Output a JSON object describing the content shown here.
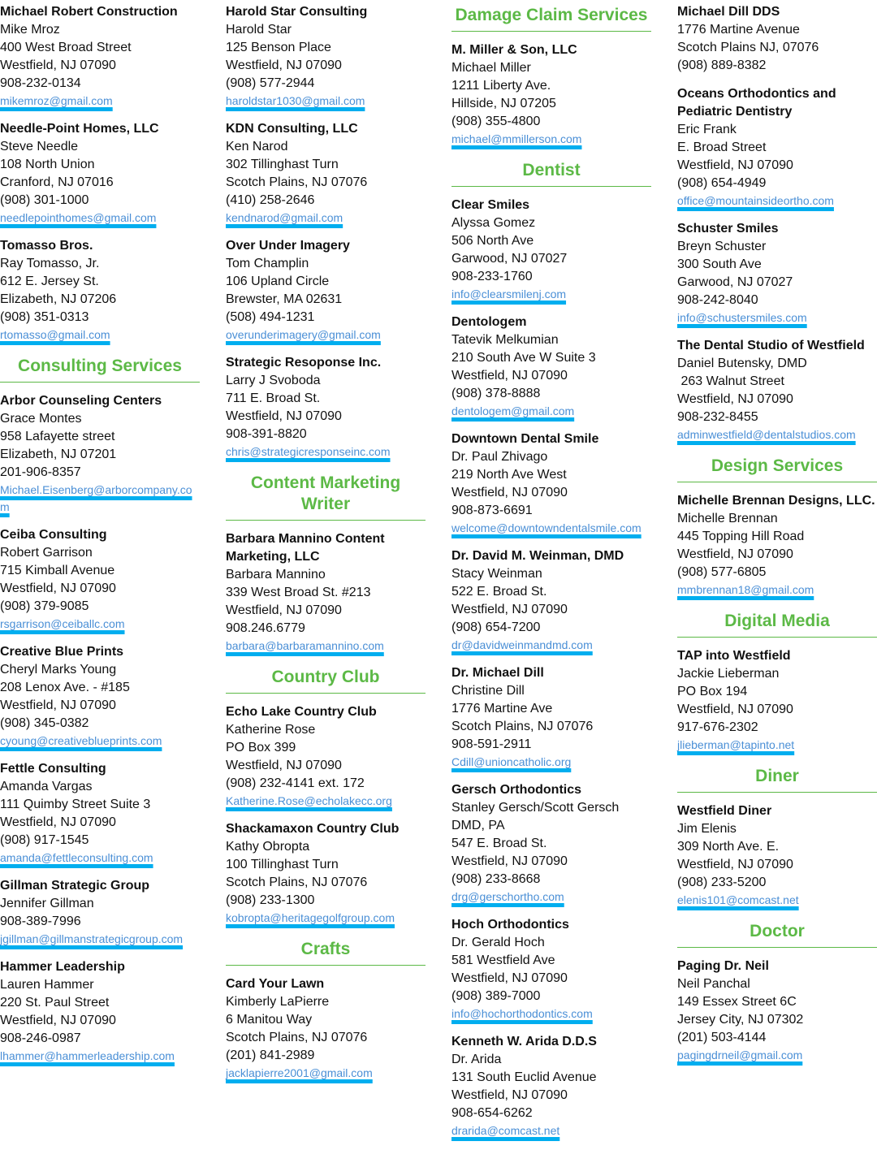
{
  "columns": [
    {
      "items": [
        {
          "name": "Michael Robert Construction",
          "lines": [
            "Mike Mroz",
            "400 West Broad Street",
            "Westfield, NJ 07090",
            "908-232-0134"
          ],
          "email": "mikemroz@gmail.com"
        },
        {
          "name": "Needle-Point Homes, LLC",
          "lines": [
            "Steve Needle",
            "108 North Union",
            "Cranford, NJ 07016",
            "(908) 301-1000"
          ],
          "email": "needlepointhomes@gmail.com"
        },
        {
          "name": "Tomasso Bros.",
          "lines": [
            "Ray Tomasso, Jr.",
            "612 E. Jersey St.",
            "Elizabeth, NJ 07206",
            "(908) 351-0313"
          ],
          "email": "rtomasso@gmail.com"
        },
        {
          "heading": "Consulting Services"
        },
        {
          "name": "Arbor Counseling Centers",
          "lines": [
            "Grace Montes",
            "958 Lafayette street",
            "Elizabeth, NJ 07201",
            "201-906-8357"
          ],
          "email": "Michael.Eisenberg@arborcompany.com"
        },
        {
          "name": "Ceiba Consulting",
          "lines": [
            "Robert Garrison",
            "715 Kimball Avenue",
            "Westfield, NJ 07090",
            "(908) 379-9085"
          ],
          "email": "rsgarrison@ceiballc.com"
        },
        {
          "name": "Creative Blue Prints",
          "lines": [
            "Cheryl Marks Young",
            "208 Lenox Ave. - #185",
            "Westfield, NJ 07090",
            "(908) 345-0382"
          ],
          "email": "cyoung@creativeblueprints.com"
        },
        {
          "name": "Fettle Consulting",
          "lines": [
            "Amanda Vargas",
            "111 Quimby Street Suite 3",
            "Westfield, NJ 07090",
            "(908) 917-1545"
          ],
          "email": "amanda@fettleconsulting.com"
        },
        {
          "name": "Gillman Strategic Group",
          "lines": [
            "Jennifer Gillman",
            "908-389-7996"
          ],
          "email": "jgillman@gillmanstrategicgroup.com"
        },
        {
          "name": "Hammer Leadership",
          "lines": [
            "Lauren Hammer",
            "220 St. Paul Street",
            "Westfield, NJ 07090",
            "908-246-0987"
          ],
          "email": "lhammer@hammerleadership.com"
        }
      ]
    },
    {
      "items": [
        {
          "name": "Harold Star Consulting",
          "lines": [
            "Harold Star",
            "125 Benson Place",
            "Westfield, NJ 07090",
            "(908) 577-2944"
          ],
          "email": "haroldstar1030@gmail.com"
        },
        {
          "name": "KDN Consulting, LLC",
          "lines": [
            "Ken Narod",
            "302 Tillinghast Turn",
            "Scotch Plains, NJ 07076",
            "(410) 258-2646"
          ],
          "email": "kendnarod@gmail.com"
        },
        {
          "name": "Over Under Imagery",
          "lines": [
            "Tom Champlin",
            "106 Upland Circle",
            "Brewster, MA 02631",
            "(508) 494-1231"
          ],
          "email": "overunderimagery@gmail.com"
        },
        {
          "name": "Strategic Resoponse Inc.",
          "lines": [
            "Larry J Svoboda",
            "711 E. Broad St.",
            "Westfield, NJ 07090",
            "908-391-8820"
          ],
          "email": "chris@strategicresponseinc.com"
        },
        {
          "heading": "Content Marketing Writer"
        },
        {
          "name": "Barbara Mannino Content Marketing, LLC",
          "lines": [
            "Barbara Mannino",
            "339 West Broad St. #213",
            "Westfield, NJ 07090",
            "908.246.6779"
          ],
          "email": "barbara@barbaramannino.com"
        },
        {
          "heading": "Country Club"
        },
        {
          "name": "Echo Lake Country Club",
          "lines": [
            "Katherine Rose",
            "PO Box 399",
            "Westfield, NJ 07090",
            "(908) 232-4141 ext. 172"
          ],
          "email": "Katherine.Rose@echolakecc.org"
        },
        {
          "name": "Shackamaxon Country Club",
          "lines": [
            "Kathy Obropta",
            "100 Tillinghast Turn",
            "Scotch Plains, NJ 07076",
            "(908) 233-1300"
          ],
          "email": "kobropta@heritagegolfgroup.com"
        },
        {
          "heading": "Crafts"
        },
        {
          "name": "Card Your Lawn",
          "lines": [
            "Kimberly LaPierre",
            "6 Manitou Way",
            "Scotch Plains, NJ 07076",
            "(201) 841-2989"
          ],
          "email": "jacklapierre2001@gmail.com"
        }
      ]
    },
    {
      "items": [
        {
          "heading": "Damage Claim Services"
        },
        {
          "name": "M. Miller & Son, LLC",
          "lines": [
            "Michael Miller",
            "1211 Liberty Ave.",
            "Hillside, NJ 07205",
            "(908) 355-4800"
          ],
          "email": "michael@mmillerson.com"
        },
        {
          "heading": "Dentist"
        },
        {
          "name": "Clear Smiles",
          "lines": [
            "Alyssa Gomez",
            "506 North Ave",
            "Garwood, NJ 07027",
            "908-233-1760"
          ],
          "email": "info@clearsmilenj.com"
        },
        {
          "name": "Dentologem",
          "lines": [
            "Tatevik Melkumian",
            "210 South Ave W Suite 3",
            "Westfield, NJ 07090",
            "(908) 378-8888"
          ],
          "email": "dentologem@gmail.com"
        },
        {
          "name": "Downtown Dental Smile",
          "lines": [
            "Dr. Paul Zhivago",
            "219 North Ave West",
            "Westfield, NJ 07090",
            "908-873-6691"
          ],
          "email": "welcome@downtowndentalsmile.com"
        },
        {
          "name": "Dr. David M. Weinman, DMD",
          "lines": [
            "Stacy Weinman",
            "522 E. Broad St.",
            "Westfield, NJ 07090",
            "(908) 654-7200"
          ],
          "email": "dr@davidweinmandmd.com"
        },
        {
          "name": "Dr. Michael Dill",
          "lines": [
            "Christine Dill",
            "1776 Martine Ave",
            "Scotch Plains, NJ 07076",
            "908-591-2911"
          ],
          "email": "Cdill@unioncatholic.org"
        },
        {
          "name": "Gersch Orthodontics",
          "lines": [
            "Stanley Gersch/Scott Gersch",
            "DMD, PA",
            "547 E. Broad St.",
            "Westfield, NJ 07090",
            "(908) 233-8668"
          ],
          "email": "drg@gerschortho.com"
        },
        {
          "name": "Hoch Orthodontics",
          "lines": [
            "Dr. Gerald Hoch",
            "581 Westfield Ave",
            "Westfield, NJ 07090",
            "(908) 389-7000"
          ],
          "email": "info@hochorthodontics.com"
        },
        {
          "name": "Kenneth W. Arida D.D.S",
          "lines": [
            "Dr. Arida",
            "131 South Euclid Avenue",
            "Westfield, NJ 07090",
            "908-654-6262"
          ],
          "email": "drarida@comcast.net"
        }
      ]
    },
    {
      "items": [
        {
          "name": "Michael Dill DDS",
          "lines": [
            "1776 Martine Avenue",
            "Scotch Plains NJ, 07076",
            "(908) 889-8382"
          ]
        },
        {
          "name": "Oceans Orthodontics and Pediatric Dentistry",
          "lines": [
            "Eric Frank",
            "E. Broad Street",
            "Westfield, NJ 07090",
            "(908) 654-4949"
          ],
          "email": "office@mountainsideortho.com"
        },
        {
          "name": "Schuster Smiles",
          "lines": [
            "Breyn Schuster",
            "300 South Ave",
            "Garwood, NJ 07027",
            "908-242-8040"
          ],
          "email": "info@schustersmiles.com"
        },
        {
          "name": "The Dental Studio of Westfield",
          "lines": [
            "Daniel Butensky, DMD",
            " 263 Walnut Street",
            "Westfield, NJ 07090",
            "908-232-8455"
          ],
          "email": "adminwestfield@dentalstudios.com"
        },
        {
          "heading": "Design Services"
        },
        {
          "name": "Michelle Brennan Designs, LLC.",
          "lines": [
            "Michelle Brennan",
            "445 Topping Hill Road",
            "Westfield, NJ 07090",
            "(908) 577-6805"
          ],
          "email": "mmbrennan18@gmail.com"
        },
        {
          "heading": "Digital Media"
        },
        {
          "name": "TAP into Westfield",
          "lines": [
            "Jackie Lieberman",
            "PO Box 194",
            "Westfield, NJ 07090",
            "917-676-2302"
          ],
          "email": "jlieberman@tapinto.net"
        },
        {
          "heading": "Diner"
        },
        {
          "name": "Westfield Diner",
          "lines": [
            "Jim Elenis",
            "309 North Ave. E.",
            "Westfield, NJ 07090",
            "(908) 233-5200"
          ],
          "email": "elenis101@comcast.net"
        },
        {
          "heading": "Doctor"
        },
        {
          "name": "Paging Dr. Neil",
          "lines": [
            "Neil Panchal",
            "149 Essex Street 6C",
            "Jersey City, NJ 07302",
            "(201) 503-4144"
          ],
          "email": "pagingdrneil@gmail.com"
        }
      ]
    }
  ]
}
